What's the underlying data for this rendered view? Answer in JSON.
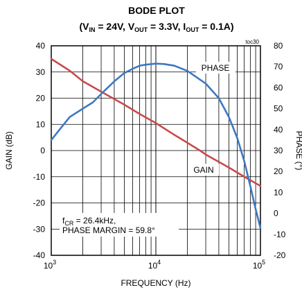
{
  "chart_data": {
    "type": "line",
    "title": "BODE PLOT",
    "subtitle_parts": {
      "open": "(V",
      "vin_sub": "IN",
      "vin_val": " = 24V, V",
      "vout_sub": "OUT",
      "vout_val": " = 3.3V, I",
      "iout_sub": "OUT",
      "iout_val": " = 0.1A)"
    },
    "figure_id": "toc30",
    "xlabel": "FREQUENCY (Hz)",
    "ylabel_left": "GAIN (dB)",
    "ylabel_right": "PHASE (°)",
    "x_scale": "log",
    "xlim": [
      1000,
      100000
    ],
    "x_ticks": [
      {
        "value": 1000,
        "base": "10",
        "exp": "3"
      },
      {
        "value": 10000,
        "base": "10",
        "exp": "4"
      },
      {
        "value": 100000,
        "base": "10",
        "exp": "5"
      }
    ],
    "ylim_left": [
      -40,
      40
    ],
    "y_ticks_left": [
      "40",
      "30",
      "20",
      "10",
      "0",
      "-10",
      "-20",
      "-30",
      "-40"
    ],
    "ylim_right": [
      -20,
      80
    ],
    "y_ticks_right": [
      "80",
      "70",
      "60",
      "50",
      "40",
      "30",
      "20",
      "10",
      "0",
      "-10",
      "-20"
    ],
    "grid": true,
    "series": [
      {
        "name": "GAIN",
        "axis": "left",
        "color": "#c84a4a",
        "x": [
          1000,
          1500,
          2000,
          3000,
          5000,
          7000,
          10000,
          15000,
          20000,
          26400,
          30000,
          50000,
          70000,
          100000
        ],
        "y": [
          35,
          30.5,
          26.5,
          22.5,
          17.5,
          14,
          10.5,
          6,
          3,
          0,
          -1.5,
          -6.5,
          -10,
          -13.5
        ]
      },
      {
        "name": "PHASE",
        "axis": "right",
        "color": "#3d78c0",
        "x": [
          1000,
          1200,
          1500,
          2000,
          2500,
          3000,
          4000,
          5000,
          6000,
          7000,
          8000,
          10000,
          12000,
          15000,
          20000,
          30000,
          40000,
          50000,
          60000,
          70000,
          80000,
          90000,
          100000
        ],
        "y": [
          35,
          40,
          46,
          50,
          53,
          57,
          63,
          67,
          69,
          70.5,
          71,
          71.5,
          71.3,
          70.5,
          68,
          62,
          55,
          46,
          36,
          25,
          13,
          2,
          -7
        ]
      }
    ],
    "annotations": {
      "phase_label": "PHASE",
      "gain_label": "GAIN",
      "fcr_main": "f",
      "fcr_sub": "CR",
      "fcr_value": " = 26.4kHz,",
      "phase_margin": "PHASE MARGIN = 59.8°"
    }
  }
}
